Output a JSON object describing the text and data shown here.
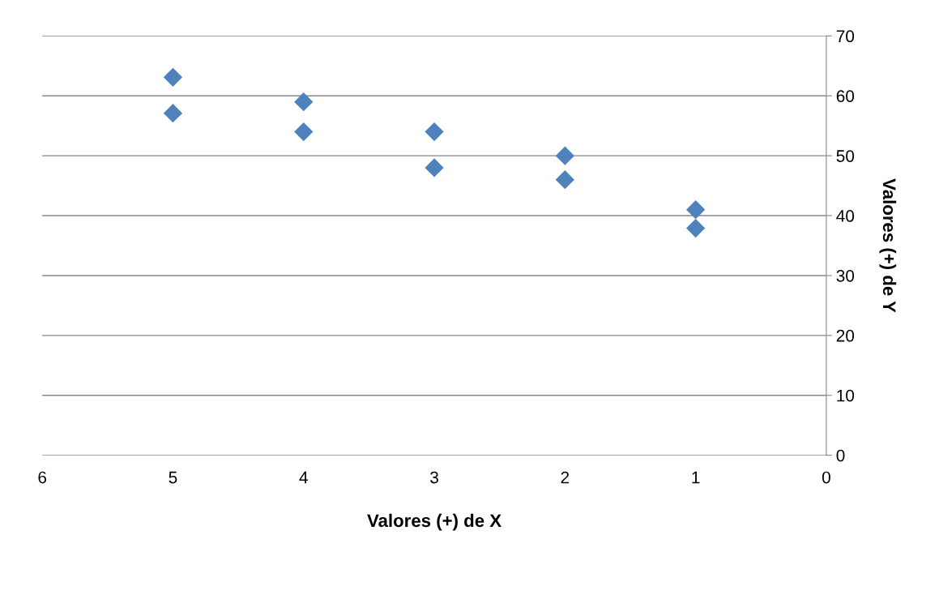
{
  "chart_data": {
    "type": "scatter",
    "xlabel": "Valores (+) de X",
    "ylabel": "Valores (+) de Y",
    "x": [
      5,
      5,
      4,
      4,
      3,
      3,
      2,
      2,
      1,
      1
    ],
    "values": [
      63.1,
      57.1,
      59.0,
      54.0,
      54.0,
      48.0,
      50.0,
      46.0,
      41.0,
      37.9
    ],
    "color": "#4f81bd",
    "marker": "diamond",
    "xlim": [
      6,
      0
    ],
    "xticks": [
      0,
      1,
      2,
      3,
      4,
      5,
      6
    ],
    "ylim": [
      0,
      70
    ],
    "yticks": [
      0,
      10,
      20,
      30,
      40,
      50,
      60,
      70
    ],
    "grid": "y"
  }
}
